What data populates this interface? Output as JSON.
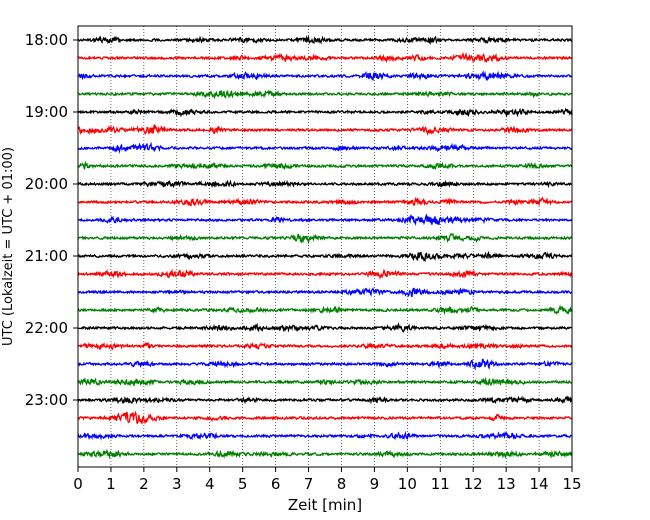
{
  "chart_data": {
    "type": "line",
    "title": "",
    "xlabel": "Zeit  [min]",
    "ylabel": "UTC (Lokalzeit = UTC + 01:00)",
    "xlim": [
      0,
      15
    ],
    "x_ticks": [
      "0",
      "1",
      "2",
      "3",
      "4",
      "5",
      "6",
      "7",
      "8",
      "9",
      "10",
      "11",
      "12",
      "13",
      "14",
      "15"
    ],
    "y_tick_labels": [
      "18:00",
      "19:00",
      "20:00",
      "21:00",
      "22:00",
      "23:00"
    ],
    "row_start_times": [
      "18:00",
      "18:15",
      "18:30",
      "18:45",
      "19:00",
      "19:15",
      "19:30",
      "19:45",
      "20:00",
      "20:15",
      "20:30",
      "20:45",
      "21:00",
      "21:15",
      "21:30",
      "21:45",
      "22:00",
      "22:15",
      "22:30",
      "22:45",
      "23:00",
      "23:15",
      "23:30",
      "23:45"
    ],
    "row_minutes": 15,
    "trace_colors": [
      "#000000",
      "#ff0000",
      "#0000ff",
      "#008000"
    ],
    "grid": "vertical dotted at each minute",
    "signal": "seismogram noise trace per row"
  }
}
